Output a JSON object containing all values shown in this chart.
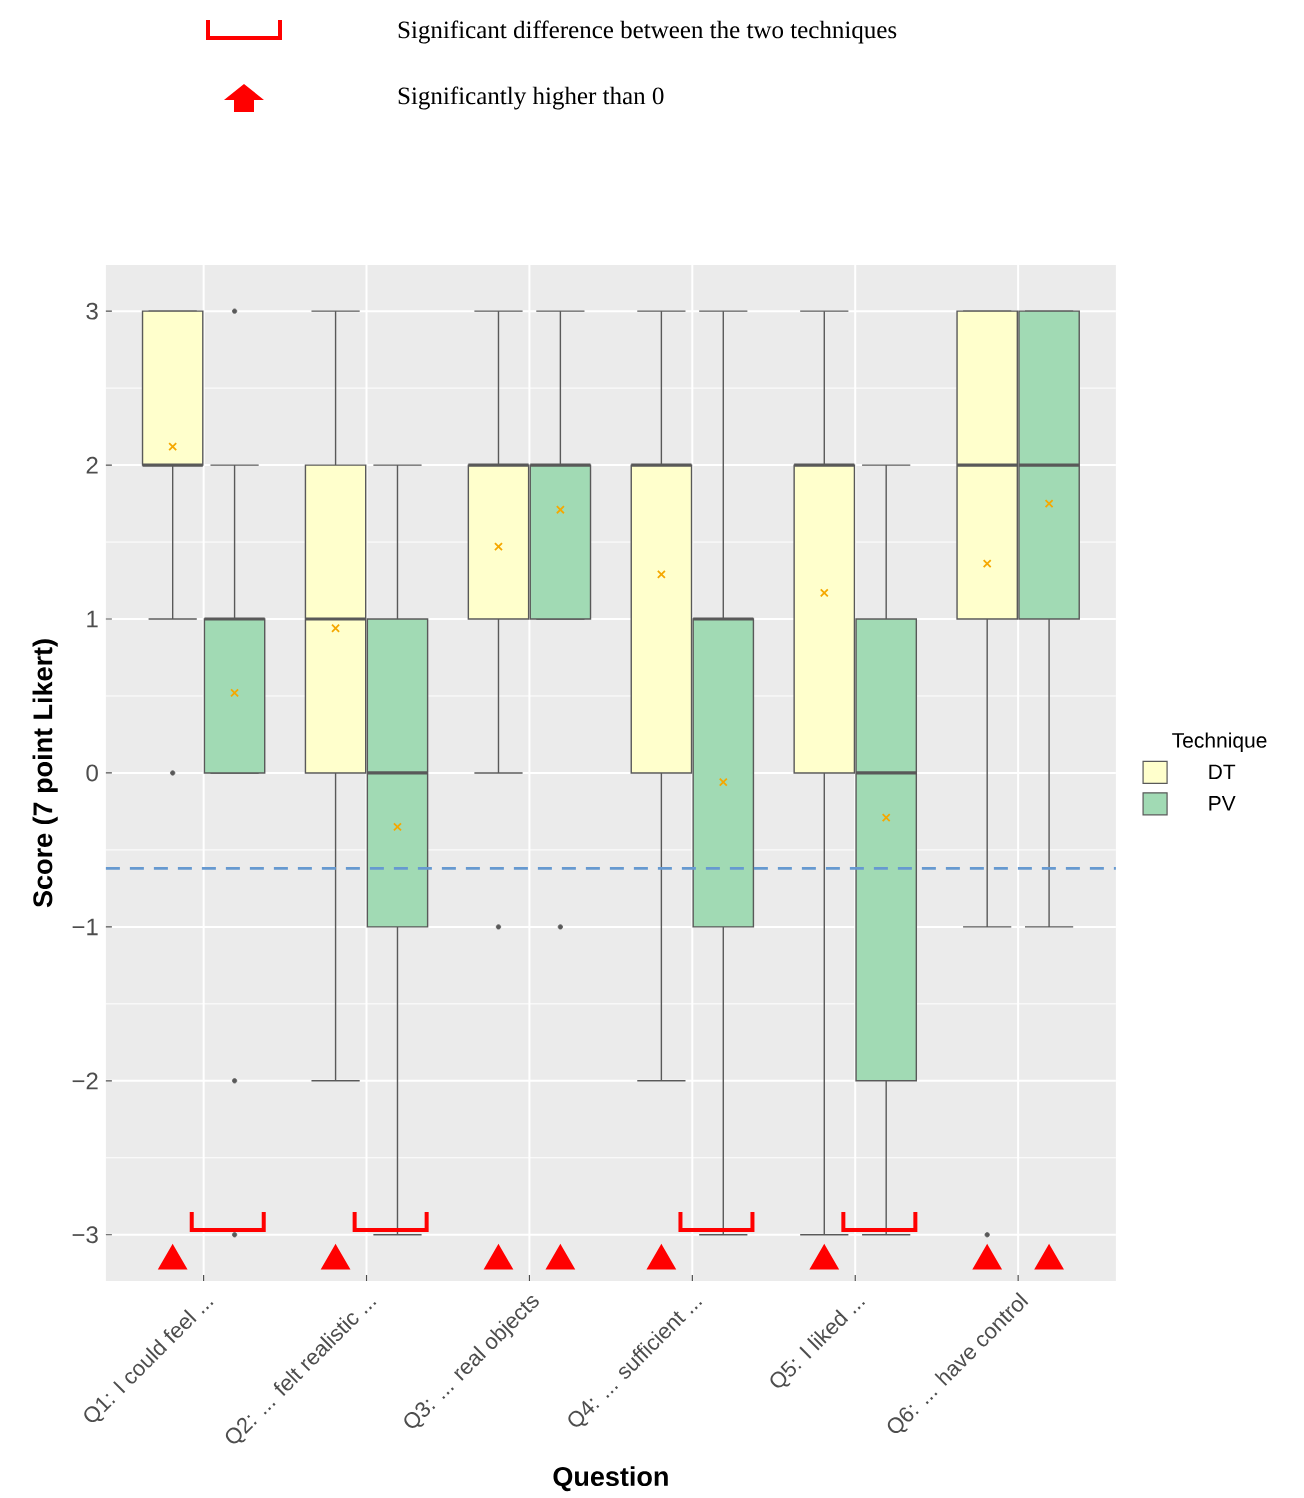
{
  "chart_data": {
    "type": "box",
    "xlabel": "Question",
    "ylabel": "Score (7 point Likert)",
    "legend_title": "Technique",
    "legend": "right",
    "grid": true,
    "annotations": [
      "Significant difference between the two techniques",
      "Significantly higher than 0"
    ],
    "categories": [
      "Q1: I could feel ...",
      "Q2: ... felt realistic ...",
      "Q3: ... real objects",
      "Q4: ... sufficient ...",
      "Q5: I liked ...",
      "Q6: ... have control"
    ],
    "ylim": [
      -3.3,
      3.3
    ],
    "yticks": [
      {
        "value": -3,
        "label": "−3"
      },
      {
        "value": -2,
        "label": "−2"
      },
      {
        "value": -1,
        "label": "−1"
      },
      0,
      1,
      2,
      3
    ],
    "ref_lines": [
      {
        "axis": "y",
        "value": -0.62,
        "color": "#6699d0",
        "line_style": "dashed"
      }
    ],
    "series": [
      {
        "name": "DT",
        "color": "#ffffcc",
        "boxes": [
          {
            "low": 1,
            "q1": 2,
            "median": 2,
            "q3": 3,
            "high": 3,
            "mean": 2.12,
            "outliers": [
              0
            ]
          },
          {
            "low": -2,
            "q1": 0,
            "median": 1,
            "q3": 2,
            "high": 3,
            "mean": 0.94
          },
          {
            "low": 0,
            "q1": 1,
            "median": 2,
            "q3": 2,
            "high": 3,
            "mean": 1.47,
            "outliers": [
              -1
            ]
          },
          {
            "low": -2,
            "q1": 0,
            "median": 2,
            "q3": 2,
            "high": 3,
            "mean": 1.29
          },
          {
            "low": -3,
            "q1": 0,
            "median": 2,
            "q3": 2,
            "high": 3,
            "mean": 1.17
          },
          {
            "low": -1,
            "q1": 1,
            "median": 2,
            "q3": 3,
            "high": 3,
            "mean": 1.36,
            "outliers": [
              -3
            ]
          }
        ]
      },
      {
        "name": "PV",
        "color": "#a1dab4",
        "boxes": [
          {
            "low": 0,
            "q1": 0,
            "median": 1,
            "q3": 1,
            "high": 2,
            "mean": 0.52,
            "outliers": [
              3,
              -2,
              -3
            ]
          },
          {
            "low": -3,
            "q1": -1,
            "median": 0,
            "q3": 1,
            "high": 2,
            "mean": -0.35
          },
          {
            "low": 1,
            "q1": 1,
            "median": 2,
            "q3": 2,
            "high": 3,
            "mean": 1.71,
            "outliers": [
              -1
            ]
          },
          {
            "low": -3,
            "q1": -1,
            "median": 1,
            "q3": 1,
            "high": 3,
            "mean": -0.06
          },
          {
            "low": -3,
            "q1": -2,
            "median": 0,
            "q3": 1,
            "high": 2,
            "mean": -0.29
          },
          {
            "low": -1,
            "q1": 1,
            "median": 2,
            "q3": 3,
            "high": 3,
            "mean": 1.75
          }
        ]
      },
      {
        "type": "scatter",
        "color": "#ff0000",
        "marker": "triangle",
        "values": [
          -3.17,
          -3.17,
          -3.17,
          -3.17,
          -3.17,
          -3.17
        ]
      },
      {
        "type": "scatter",
        "color": "#ff0000",
        "marker": "triangle",
        "values": [
          null,
          null,
          -3.17,
          null,
          null,
          -3.17
        ]
      }
    ]
  }
}
